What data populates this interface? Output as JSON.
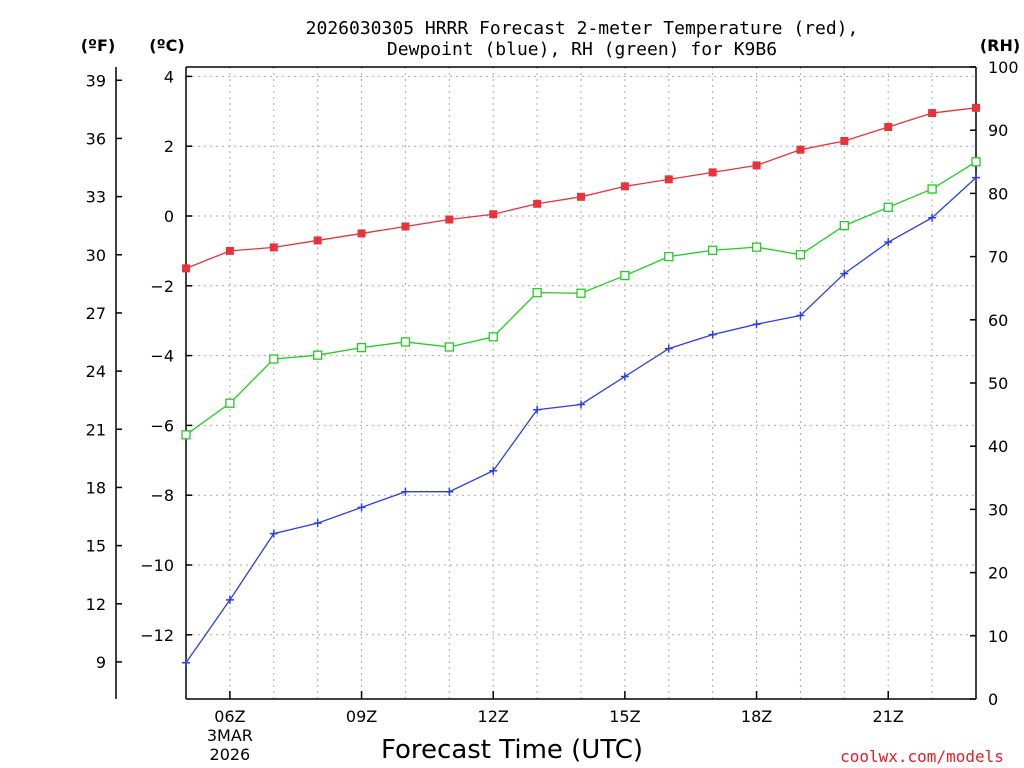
{
  "chart_data": {
    "type": "line",
    "title_line1": "2026030305 HRRR Forecast 2-meter Temperature (red),",
    "title_line2": "Dewpoint (blue), RH (green) for K9B6",
    "xlabel": "Forecast Time (UTC)",
    "credit": "coolwx.com/models",
    "units": {
      "fahrenheit": "(ºF)",
      "celsius": "(ºC)",
      "rh": "(RH)"
    },
    "x_hours": [
      5,
      6,
      7,
      8,
      9,
      10,
      11,
      12,
      13,
      14,
      15,
      16,
      17,
      18,
      19,
      20,
      21,
      22,
      23
    ],
    "x_range": [
      5,
      23
    ],
    "x_ticks": [
      {
        "hour": 6,
        "label": "06Z",
        "sub1": "3MAR",
        "sub2": "2026"
      },
      {
        "hour": 9,
        "label": "09Z"
      },
      {
        "hour": 12,
        "label": "12Z"
      },
      {
        "hour": 15,
        "label": "15Z"
      },
      {
        "hour": 18,
        "label": "18Z"
      },
      {
        "hour": 21,
        "label": "21Z"
      }
    ],
    "celsius_range": [
      -14,
      4.4
    ],
    "celsius_ticks": [
      4,
      2,
      0,
      -2,
      -4,
      -6,
      -8,
      -10,
      -12
    ],
    "celsius_tick_labels": [
      "4",
      "2",
      "0",
      "−2",
      "−4",
      "−6",
      "−8",
      "−10",
      "−12"
    ],
    "fahrenheit_ticks": [
      39,
      36,
      33,
      30,
      27,
      24,
      21,
      18,
      15,
      12,
      9
    ],
    "rh_range": [
      0,
      100
    ],
    "rh_ticks": [
      100,
      90,
      80,
      70,
      60,
      50,
      40,
      30,
      20,
      10,
      0
    ],
    "series": [
      {
        "name": "Temperature",
        "color": "#e8333a",
        "axis": "celsius",
        "marker": "filled-square",
        "values": [
          -1.5,
          -1.0,
          -0.9,
          -0.7,
          -0.5,
          -0.3,
          -0.1,
          0.05,
          0.35,
          0.55,
          0.85,
          1.05,
          1.25,
          1.45,
          1.9,
          2.15,
          2.55,
          2.95,
          3.1
        ]
      },
      {
        "name": "Dewpoint",
        "color": "#2c3fe0",
        "axis": "celsius",
        "marker": "plus",
        "values": [
          -12.8,
          -11.0,
          -9.1,
          -8.8,
          -8.35,
          -7.9,
          -7.9,
          -7.3,
          -5.55,
          -5.4,
          -4.6,
          -3.8,
          -3.4,
          -3.1,
          -2.85,
          -1.65,
          -0.75,
          -0.05,
          1.1
        ]
      },
      {
        "name": "RH",
        "color": "#22cc22",
        "axis": "rh",
        "marker": "open-square",
        "values": [
          41.8,
          46.8,
          53.8,
          54.4,
          55.6,
          56.5,
          55.7,
          57.3,
          64.3,
          64.2,
          67.0,
          70.0,
          71.0,
          71.5,
          70.3,
          74.9,
          77.8,
          80.7,
          85.0
        ]
      }
    ]
  }
}
